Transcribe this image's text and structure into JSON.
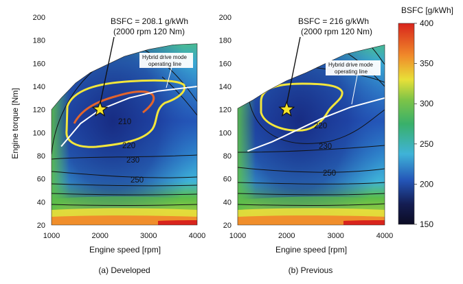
{
  "chart_data": [
    {
      "type": "heatmap",
      "caption": "(a) Developed",
      "xlabel": "Engine speed [rpm]",
      "ylabel": "Engine torque [Nm]",
      "xlim": [
        1000,
        4000
      ],
      "ylim": [
        20,
        200
      ],
      "xticks": [
        "1000",
        "2000",
        "3000",
        "4000"
      ],
      "yticks": [
        "20",
        "40",
        "60",
        "80",
        "100",
        "120",
        "140",
        "160",
        "180",
        "200"
      ],
      "annotation_line1": "BSFC = 208.1 g/kWh",
      "annotation_line2": "(2000 rpm 120 Nm)",
      "star_point": {
        "speed_rpm": 2000,
        "torque_nm": 120
      },
      "operating_line_label_1": "Hybrid drive mode",
      "operating_line_label_2": "operating line",
      "operating_line": [
        [
          1200,
          88
        ],
        [
          1600,
          108
        ],
        [
          2000,
          120
        ],
        [
          2600,
          130
        ],
        [
          3200,
          136
        ],
        [
          4000,
          140
        ]
      ],
      "contour_labels": [
        "210",
        "220",
        "230",
        "250"
      ]
    },
    {
      "type": "heatmap",
      "caption": "(b) Previous",
      "xlabel": "Engine speed [rpm]",
      "ylabel": "",
      "xlim": [
        1000,
        4000
      ],
      "ylim": [
        20,
        200
      ],
      "xticks": [
        "1000",
        "2000",
        "3000",
        "4000"
      ],
      "yticks": [
        "20",
        "40",
        "60",
        "80",
        "100",
        "120",
        "140",
        "160",
        "180",
        "200"
      ],
      "annotation_line1": "BSFC = 216 g/kWh",
      "annotation_line2": "(2000 rpm 120 Nm)",
      "star_point": {
        "speed_rpm": 2000,
        "torque_nm": 120
      },
      "operating_line_label_1": "Hybrid drive mode",
      "operating_line_label_2": "operating line",
      "operating_line": [
        [
          1200,
          84
        ],
        [
          1700,
          92
        ],
        [
          2100,
          100
        ],
        [
          2700,
          112
        ],
        [
          3300,
          122
        ],
        [
          4000,
          130
        ]
      ],
      "contour_labels": [
        "220",
        "230",
        "250"
      ]
    }
  ],
  "colorbar": {
    "title": "BSFC [g/kWh]",
    "ticks": [
      "400",
      "350",
      "300",
      "250",
      "200",
      "150"
    ],
    "range": [
      150,
      400
    ]
  },
  "colors": {
    "low": "#141d52",
    "blue": "#2456b8",
    "cyan": "#3fb3d8",
    "green": "#5bbd4a",
    "yellow": "#f2e13a",
    "orange": "#f08a2a",
    "red": "#d8241c",
    "contour_220": "#f3e63b",
    "contour_210": "#e2642c",
    "operating_line": "#ffffff",
    "star": "#f7e52a"
  }
}
